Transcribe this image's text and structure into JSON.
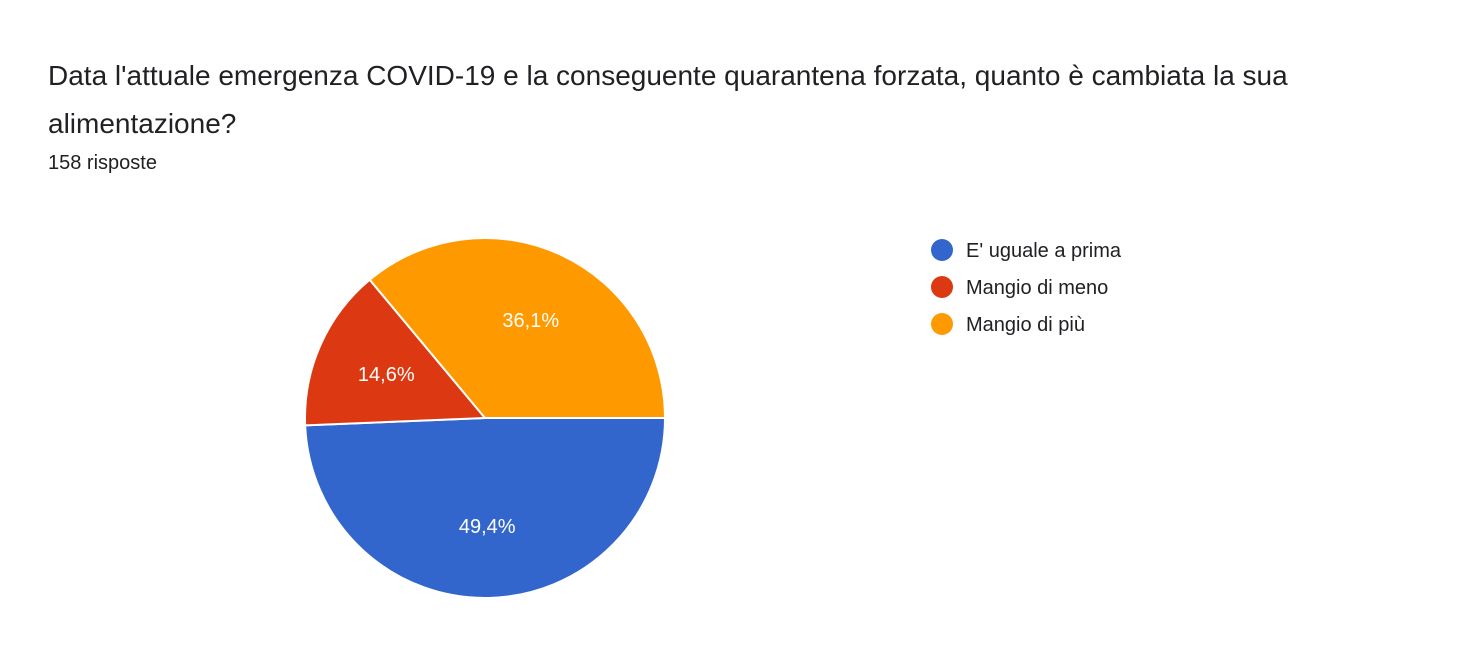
{
  "question": {
    "title": "Data l'attuale emergenza COVID-19 e la conseguente quarantena forzata, quanto è cambiata la sua alimentazione?",
    "response_count": "158 risposte"
  },
  "chart_data": {
    "type": "pie",
    "categories": [
      "E' uguale a prima",
      "Mangio di meno",
      "Mangio di più"
    ],
    "values": [
      49.4,
      14.6,
      36.1
    ],
    "value_labels": [
      "49,4%",
      "14,6%",
      "36,1%"
    ],
    "colors": [
      "#3366cc",
      "#dc3912",
      "#ff9900"
    ],
    "legend_position": "right",
    "start_direction": "right",
    "direction": "clockwise"
  }
}
